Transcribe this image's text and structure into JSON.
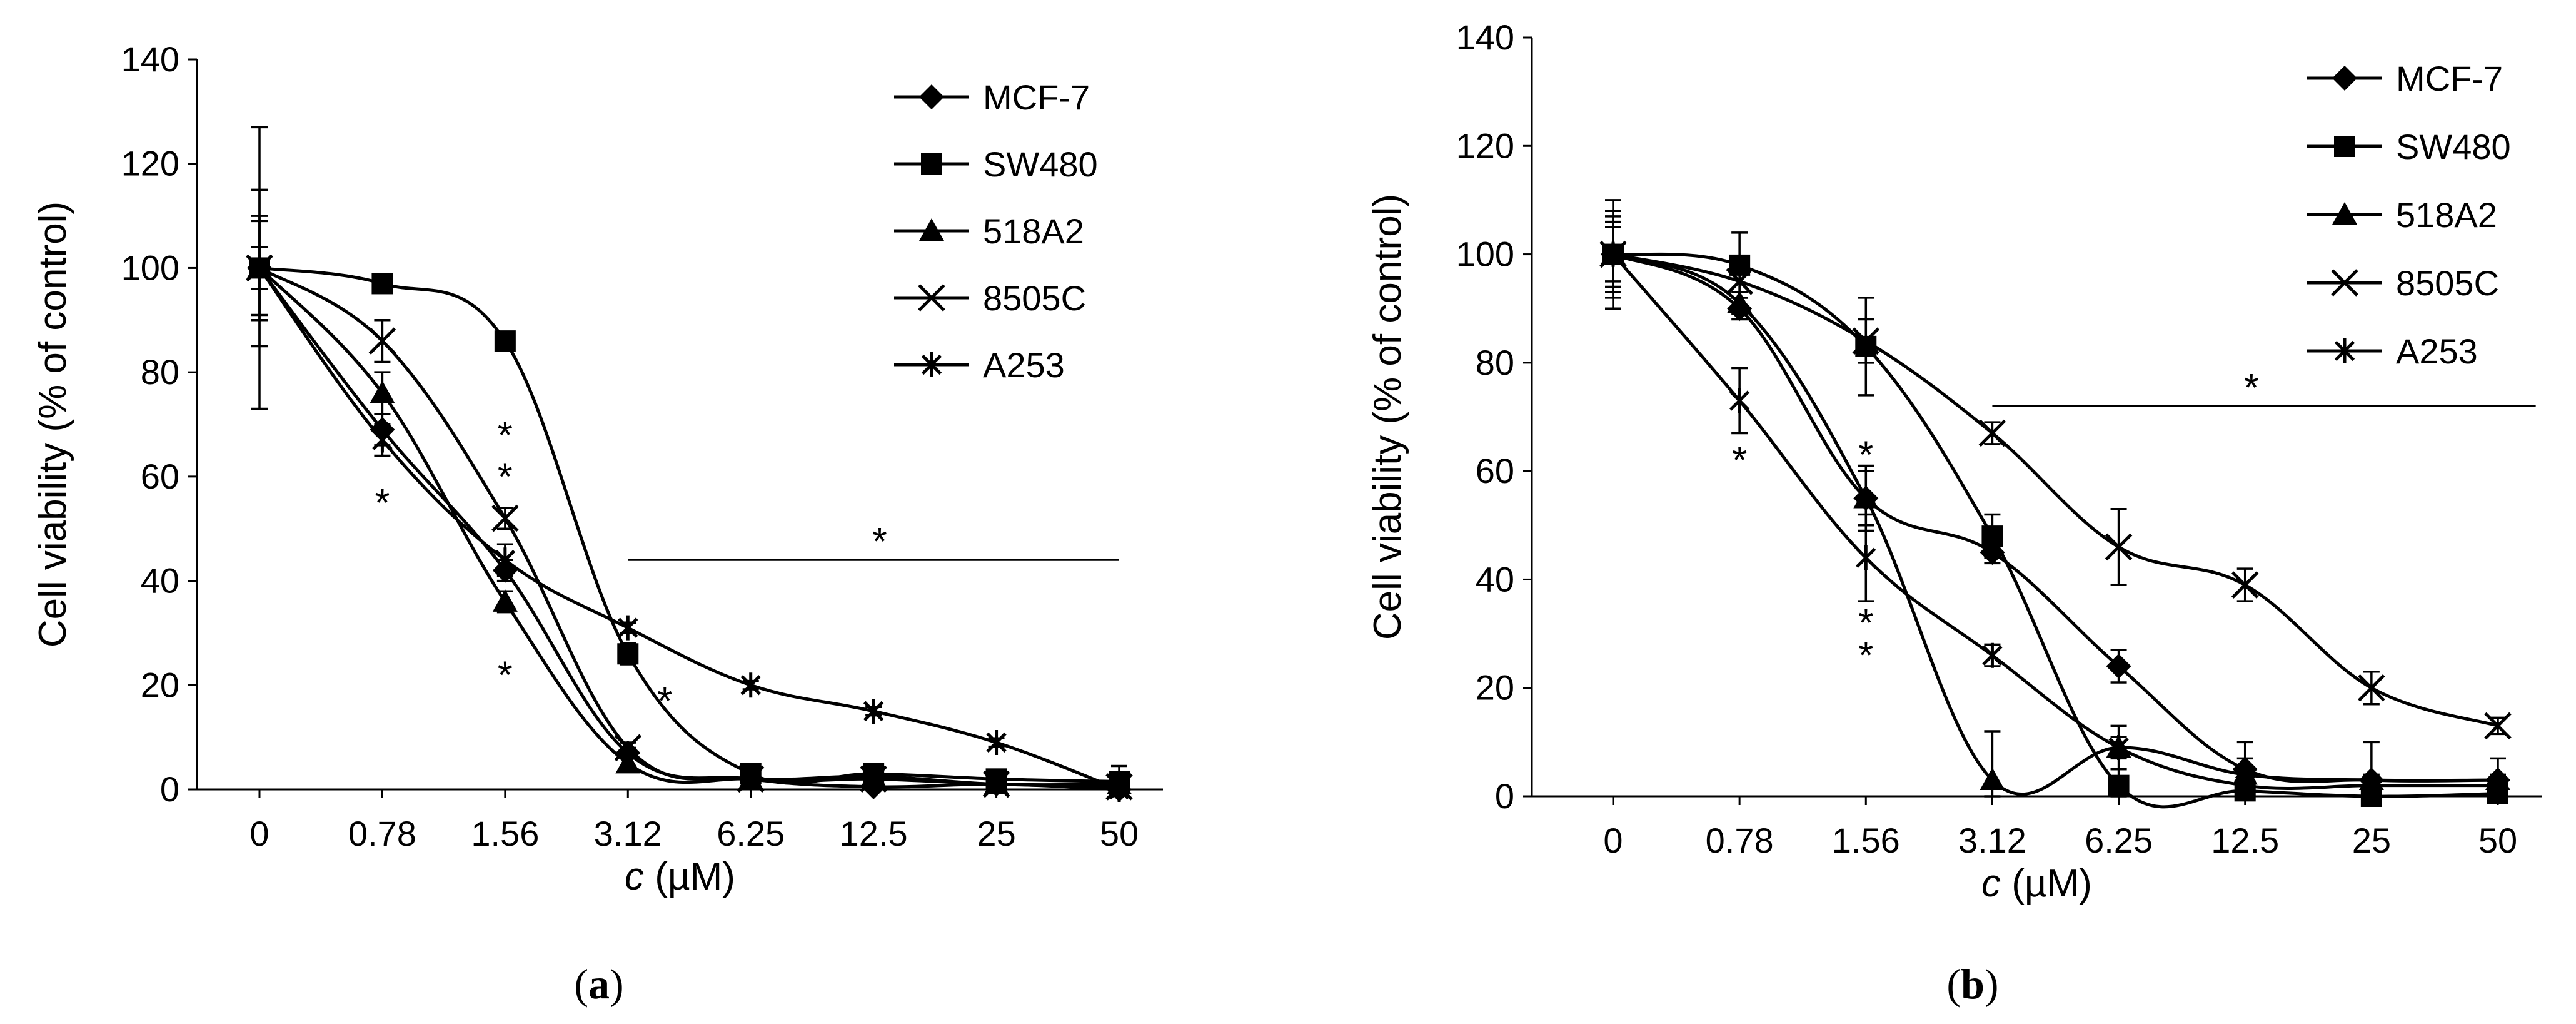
{
  "figure": {
    "symbols": {
      "marker": "✱",
      "significance": "*"
    },
    "panels": [
      {
        "caption_letter": "a"
      },
      {
        "caption_letter": "b"
      }
    ]
  },
  "chart_data": [
    {
      "type": "line",
      "panel": "a",
      "title": "",
      "xlabel": "c (µM)",
      "xlabel_italic_part": "c",
      "xlabel_unit": " (µM)",
      "ylabel": "Cell viability (% of control)",
      "ylim": [
        0,
        140
      ],
      "yticks": [
        0,
        20,
        40,
        60,
        80,
        100,
        120,
        140
      ],
      "categories": [
        "0",
        "0.78",
        "1.56",
        "3.12",
        "6.25",
        "12.5",
        "25",
        "50"
      ],
      "legend_position": "top-right",
      "grid": false,
      "series": [
        {
          "name": "MCF-7",
          "marker": "diamond",
          "values": [
            100,
            69,
            42,
            7,
            2,
            0.5,
            1,
            0
          ],
          "err": [
            15,
            3,
            2,
            1,
            0.5,
            0.5,
            0.5,
            0.5
          ]
        },
        {
          "name": "SW480",
          "marker": "square",
          "values": [
            100,
            97,
            86,
            26,
            3,
            3,
            2,
            1.5
          ],
          "err": [
            27,
            1,
            1,
            2,
            0.5,
            0.5,
            0.5,
            3
          ]
        },
        {
          "name": "518A2",
          "marker": "triangle",
          "values": [
            100,
            76,
            36,
            5,
            2,
            2.5,
            1,
            1
          ],
          "err": [
            4,
            4,
            2,
            1,
            0.5,
            0.5,
            0.5,
            0.5
          ]
        },
        {
          "name": "8505C",
          "marker": "x",
          "values": [
            100,
            86,
            52,
            8,
            2,
            2,
            1,
            0.5
          ],
          "err": [
            10,
            4,
            2,
            1,
            0.5,
            0.5,
            0.5,
            0.5
          ]
        },
        {
          "name": "A253",
          "marker": "asterisk",
          "values": [
            100,
            67,
            44,
            31,
            20,
            15,
            9,
            0
          ],
          "err": [
            9,
            3,
            3,
            1,
            0.8,
            0.8,
            0.8,
            0.5
          ]
        }
      ],
      "significance": [
        {
          "x_index": 1,
          "y": 56
        },
        {
          "x_index": 2,
          "y": 69
        },
        {
          "x_index": 2,
          "y": 61
        },
        {
          "x_index": 2,
          "y": 23
        },
        {
          "x_index": 3.3,
          "y": 18
        }
      ],
      "significance_bar": {
        "from_index": 3,
        "to_index": 7,
        "y": 44,
        "star_index": 5.05
      }
    },
    {
      "type": "line",
      "panel": "b",
      "title": "",
      "xlabel": "c (µM)",
      "xlabel_italic_part": "c",
      "xlabel_unit": " (µM)",
      "ylabel": "Cell viability (% of control)",
      "ylim": [
        0,
        140
      ],
      "yticks": [
        0,
        20,
        40,
        60,
        80,
        100,
        120,
        140
      ],
      "categories": [
        "0",
        "0.78",
        "1.56",
        "3.12",
        "6.25",
        "12.5",
        "25",
        "50"
      ],
      "legend_position": "top-right",
      "grid": false,
      "series": [
        {
          "name": "MCF-7",
          "marker": "diamond",
          "values": [
            100,
            90,
            55,
            45,
            24,
            5,
            3,
            3
          ],
          "err": [
            7,
            2,
            6,
            2,
            3,
            2,
            1,
            1
          ]
        },
        {
          "name": "SW480",
          "marker": "square",
          "values": [
            100,
            98,
            83,
            48,
            2,
            1,
            0,
            0.5
          ],
          "err": [
            5,
            6,
            9,
            4,
            3,
            1,
            0.5,
            0.5
          ]
        },
        {
          "name": "518A2",
          "marker": "triangle",
          "values": [
            100,
            91,
            55,
            3,
            9,
            4,
            3,
            3
          ],
          "err": [
            6,
            2,
            5,
            9,
            4,
            6,
            7,
            4
          ]
        },
        {
          "name": "8505C",
          "marker": "x",
          "values": [
            100,
            95,
            84,
            67,
            46,
            39,
            20,
            13
          ],
          "err": [
            8,
            3,
            4,
            2,
            7,
            3,
            3,
            1.5
          ]
        },
        {
          "name": "A253",
          "marker": "asterisk",
          "values": [
            100,
            73,
            44,
            26,
            9,
            2,
            2,
            2
          ],
          "err": [
            10,
            6,
            8,
            2,
            2,
            2,
            1,
            1
          ]
        }
      ],
      "significance": [
        {
          "x_index": 1,
          "y": 63
        },
        {
          "x_index": 2,
          "y": 64
        },
        {
          "x_index": 2,
          "y": 33
        },
        {
          "x_index": 2,
          "y": 27
        }
      ],
      "significance_bar": {
        "from_index": 3,
        "to_index": 7.3,
        "y": 72,
        "star_index": 5.05
      }
    }
  ]
}
